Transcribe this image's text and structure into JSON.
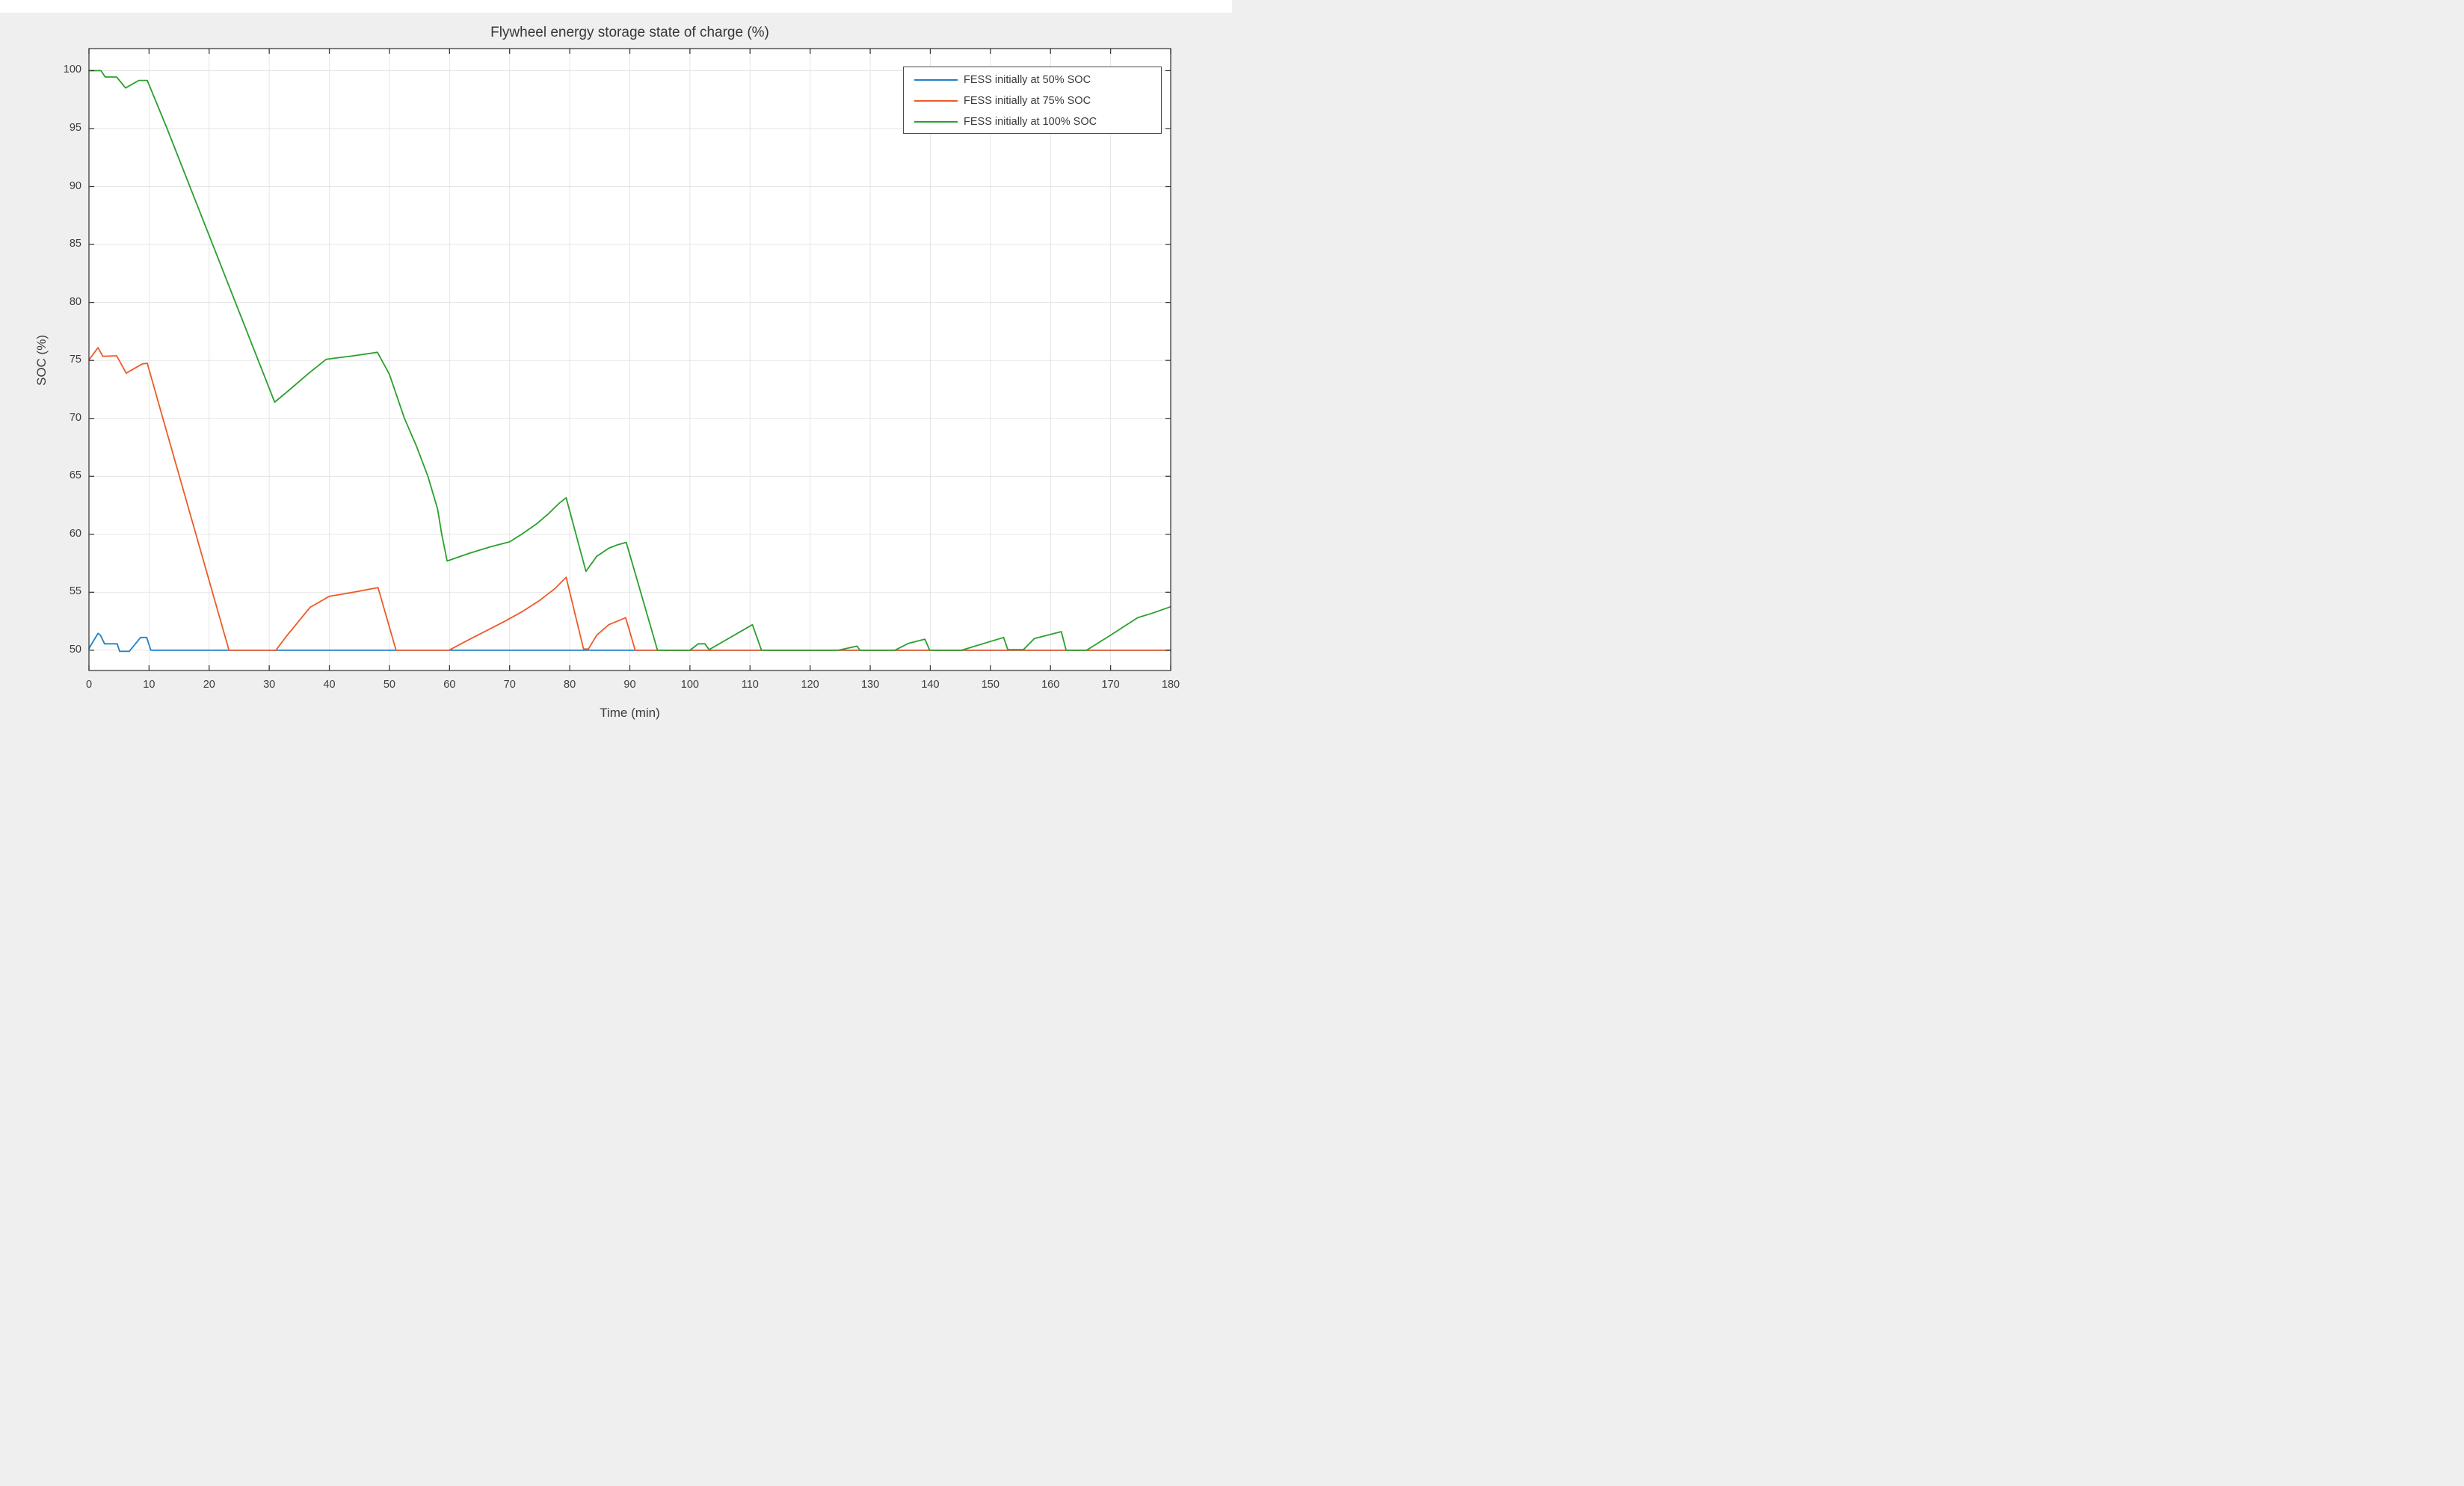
{
  "figure": {
    "background": "#EFEFEF",
    "top_strip_color": "#FFFFFF",
    "plot_background": "#FFFFFF",
    "grid_color": "#E3E3E3",
    "spine_color": "#3B3B3B",
    "tick_color": "#3B3B3B",
    "text_color": "#3C3C3C"
  },
  "chart_data": {
    "type": "line",
    "title": "Flywheel energy storage state of charge (%)",
    "xlabel": "Time (min)",
    "ylabel": "SOC (%)",
    "xlim": [
      0,
      180
    ],
    "ylim": [
      48.25,
      101.9
    ],
    "x_ticks": [
      0,
      10,
      20,
      30,
      40,
      50,
      60,
      70,
      80,
      90,
      100,
      110,
      120,
      130,
      140,
      150,
      160,
      170,
      180
    ],
    "y_ticks": [
      50,
      55,
      60,
      65,
      70,
      75,
      80,
      85,
      90,
      95,
      100
    ],
    "grid": true,
    "box": true,
    "tick_direction": "in",
    "legend_position": "upper-right-inside",
    "series": [
      {
        "name": "FESS initially at 50% SOC",
        "color": "#1F82C8",
        "points": [
          [
            0,
            50.15
          ],
          [
            1.5,
            51.45
          ],
          [
            1.9,
            51.3
          ],
          [
            2.6,
            50.55
          ],
          [
            4.7,
            50.55
          ],
          [
            5.1,
            49.9
          ],
          [
            6.7,
            49.9
          ],
          [
            8.6,
            51.1
          ],
          [
            9.6,
            51.1
          ],
          [
            10.3,
            50
          ],
          [
            180,
            50
          ]
        ]
      },
      {
        "name": "FESS initially at 75% SOC",
        "color": "#ED5A28",
        "points": [
          [
            0,
            75.05
          ],
          [
            1.5,
            76.1
          ],
          [
            2.3,
            75.35
          ],
          [
            4.6,
            75.4
          ],
          [
            6.2,
            73.9
          ],
          [
            8.9,
            74.7
          ],
          [
            9.7,
            74.75
          ],
          [
            12.3,
            70
          ],
          [
            23.3,
            50
          ],
          [
            31.1,
            50
          ],
          [
            33,
            51.3
          ],
          [
            36.8,
            53.7
          ],
          [
            40,
            54.65
          ],
          [
            44,
            55
          ],
          [
            48.1,
            55.4
          ],
          [
            51.1,
            50
          ],
          [
            59.9,
            50
          ],
          [
            63,
            50.85
          ],
          [
            66,
            51.65
          ],
          [
            69,
            52.45
          ],
          [
            72,
            53.3
          ],
          [
            75,
            54.3
          ],
          [
            77.5,
            55.3
          ],
          [
            79.4,
            56.3
          ],
          [
            82.3,
            50.1
          ],
          [
            83.1,
            50.1
          ],
          [
            84.5,
            51.3
          ],
          [
            86.5,
            52.2
          ],
          [
            89.3,
            52.8
          ],
          [
            90.9,
            50
          ],
          [
            180,
            50
          ]
        ]
      },
      {
        "name": "FESS initially at 100% SOC",
        "color": "#2AA02C",
        "points": [
          [
            0,
            100
          ],
          [
            2,
            100
          ],
          [
            2.7,
            99.45
          ],
          [
            4.6,
            99.45
          ],
          [
            6.1,
            98.5
          ],
          [
            8.3,
            99.15
          ],
          [
            9.7,
            99.15
          ],
          [
            13,
            95
          ],
          [
            30.9,
            71.4
          ],
          [
            33,
            72.3
          ],
          [
            36.6,
            73.9
          ],
          [
            39.5,
            75.1
          ],
          [
            44,
            75.4
          ],
          [
            48,
            75.7
          ],
          [
            50,
            73.8
          ],
          [
            52.5,
            70
          ],
          [
            54.5,
            67.6
          ],
          [
            56.4,
            65
          ],
          [
            58,
            62.2
          ],
          [
            58.7,
            60
          ],
          [
            59.6,
            57.7
          ],
          [
            63.5,
            58.4
          ],
          [
            67,
            58.95
          ],
          [
            70,
            59.35
          ],
          [
            72,
            60
          ],
          [
            74.5,
            60.9
          ],
          [
            76.5,
            61.8
          ],
          [
            78.3,
            62.7
          ],
          [
            79.4,
            63.15
          ],
          [
            82.7,
            56.8
          ],
          [
            84.5,
            58.1
          ],
          [
            86.5,
            58.8
          ],
          [
            88,
            59.1
          ],
          [
            89.4,
            59.3
          ],
          [
            94.6,
            50
          ],
          [
            100,
            50
          ],
          [
            101.4,
            50.55
          ],
          [
            102.5,
            50.55
          ],
          [
            103.2,
            50.05
          ],
          [
            110.4,
            52.2
          ],
          [
            111.9,
            50
          ],
          [
            124.7,
            50
          ],
          [
            127.8,
            50.35
          ],
          [
            128.3,
            50
          ],
          [
            134.1,
            50
          ],
          [
            136.4,
            50.6
          ],
          [
            139.1,
            50.95
          ],
          [
            139.9,
            50
          ],
          [
            145.2,
            50
          ],
          [
            152.2,
            51.1
          ],
          [
            152.9,
            50.05
          ],
          [
            155.5,
            50.05
          ],
          [
            157.3,
            51
          ],
          [
            159.5,
            51.3
          ],
          [
            161.8,
            51.6
          ],
          [
            162.6,
            50
          ],
          [
            166,
            50
          ],
          [
            170,
            51.3
          ],
          [
            174.5,
            52.8
          ],
          [
            177,
            53.2
          ],
          [
            180,
            53.75
          ]
        ]
      }
    ]
  }
}
